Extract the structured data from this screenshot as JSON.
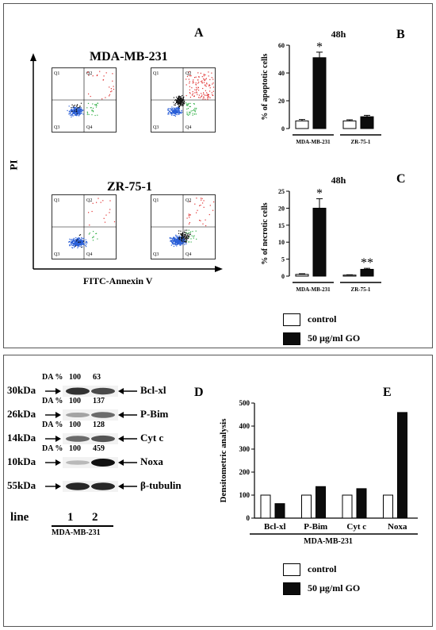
{
  "top": {
    "panel_a": {
      "letter": "A",
      "row1_label": "MDA-MB-231",
      "row2_label": "ZR-75-1",
      "y_axis": "PI",
      "x_axis": "FITC-Annexin V",
      "quadrants": [
        "Q1",
        "Q2",
        "Q3",
        "Q4"
      ]
    },
    "panel_b": {
      "letter": "B",
      "time": "48h"
    },
    "panel_c": {
      "letter": "C",
      "time": "48h"
    },
    "legend": {
      "control": "control",
      "treated": "50 µg/ml GO"
    }
  },
  "bottom": {
    "panel_d": {
      "letter": "D",
      "da_label": "DA %",
      "rows": [
        {
          "kda": "30kDa",
          "protein": "Bcl-xl",
          "da": [
            "100",
            "63"
          ],
          "has_da": true
        },
        {
          "kda": "26kDa",
          "protein": "P-Bim",
          "da": [
            "100",
            "137"
          ],
          "has_da": true
        },
        {
          "kda": "14kDa",
          "protein": "Cyt c",
          "da": [
            "100",
            "128"
          ],
          "has_da": true
        },
        {
          "kda": "10kDa",
          "protein": "Noxa",
          "da": [
            "100",
            "459"
          ],
          "has_da": true
        },
        {
          "kda": "55kDa",
          "protein": "β-tubulin",
          "da": [
            "",
            ""
          ],
          "has_da": false
        }
      ],
      "line_label": "line",
      "lanes": [
        "1",
        "2"
      ],
      "cell_line": "MDA-MB-231"
    },
    "panel_e": {
      "letter": "E"
    },
    "legend": {
      "control": "control",
      "treated": "50 µg/ml GO"
    }
  },
  "chart_data": [
    {
      "type": "bar",
      "panel": "B",
      "title": "48h",
      "ylabel": "% of apoptotic cells",
      "ylim": [
        0,
        60
      ],
      "yticks": [
        0,
        20,
        40,
        60
      ],
      "groups": [
        "MDA-MB-231",
        "ZR-75-1"
      ],
      "series": [
        {
          "name": "control",
          "values": [
            5.5,
            5.5
          ],
          "errors": [
            1,
            0.8
          ]
        },
        {
          "name": "50 µg/ml GO",
          "values": [
            51,
            8.5
          ],
          "errors": [
            4,
            1
          ]
        }
      ],
      "annotations": [
        "*"
      ]
    },
    {
      "type": "bar",
      "panel": "C",
      "title": "48h",
      "ylabel": "% of necrotic cells",
      "ylim": [
        0,
        25
      ],
      "yticks": [
        0,
        5,
        10,
        15,
        20,
        25
      ],
      "groups": [
        "MDA-MB-231",
        "ZR-75-1"
      ],
      "series": [
        {
          "name": "control",
          "values": [
            0.5,
            0.3
          ],
          "errors": [
            0.2,
            0.1
          ]
        },
        {
          "name": "50 µg/ml GO",
          "values": [
            20,
            2
          ],
          "errors": [
            2.8,
            0.3
          ]
        }
      ],
      "annotations": [
        "*",
        "**"
      ]
    },
    {
      "type": "bar",
      "panel": "E",
      "ylabel": "Densitometric analysis",
      "ylim": [
        0,
        500
      ],
      "yticks": [
        0,
        100,
        200,
        300,
        400,
        500
      ],
      "categories": [
        "Bcl-xl",
        "P-Bim",
        "Cyt c",
        "Noxa"
      ],
      "xlabel": "MDA-MB-231",
      "series": [
        {
          "name": "control",
          "values": [
            100,
            100,
            100,
            100
          ]
        },
        {
          "name": "50 µg/ml GO",
          "values": [
            63,
            137,
            128,
            459
          ]
        }
      ]
    }
  ]
}
